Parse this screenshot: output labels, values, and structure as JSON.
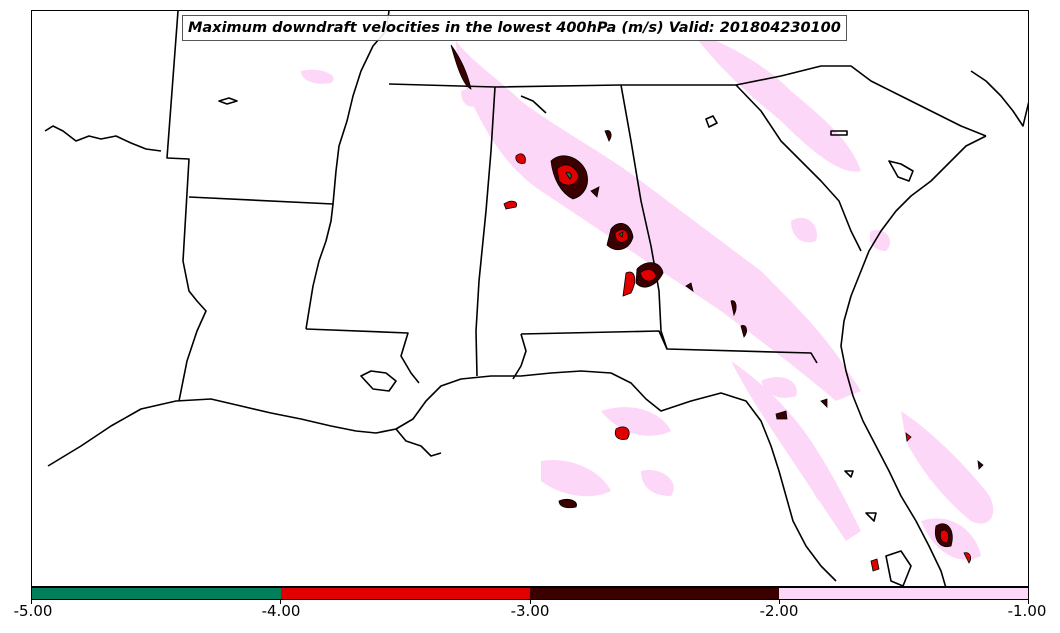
{
  "title": "Maximum downdraft velocities in the lowest 400hPa (m/s) Valid: 201804230100",
  "colorbar": {
    "colors": [
      "#007f5a",
      "#e00000",
      "#3a0000",
      "#fdd7f8"
    ],
    "tick_labels": [
      "-5.00",
      "-4.00",
      "-3.00",
      "-2.00",
      "-1.00"
    ]
  },
  "map": {
    "land_color": "#ffffff",
    "boundary_color": "#000000",
    "shading_levels": [
      {
        "range": "-2.00 to -1.00",
        "color": "#fdd7f8"
      },
      {
        "range": "-3.00 to -2.00",
        "color": "#3a0000"
      },
      {
        "range": "-4.00 to -3.00",
        "color": "#e00000"
      },
      {
        "range": "-5.00 to -4.00",
        "color": "#007f5a"
      }
    ]
  }
}
